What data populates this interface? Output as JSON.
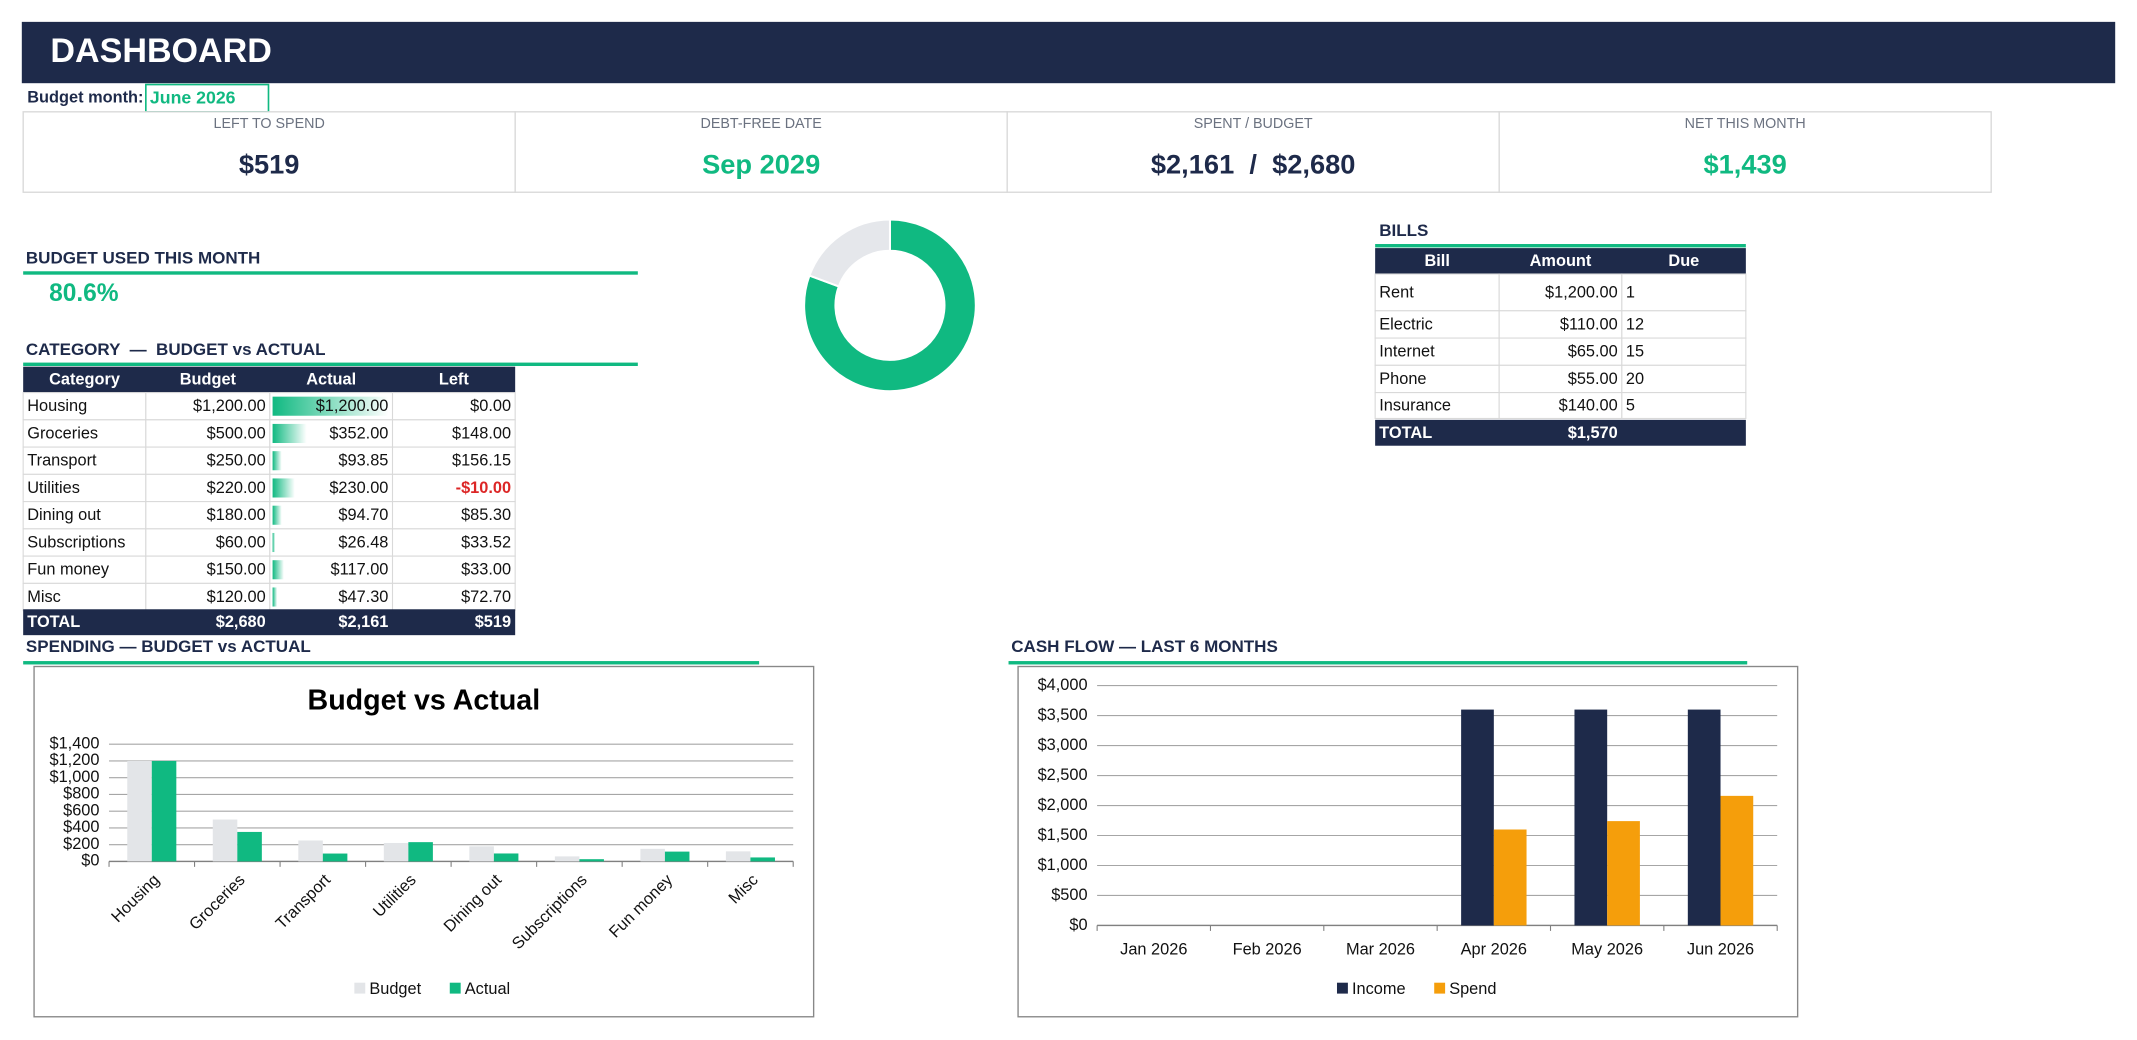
{
  "header": {
    "title": "DASHBOARD",
    "budget_month_label": "Budget month:",
    "budget_month": "June 2026"
  },
  "kpis": [
    {
      "label": "LEFT TO SPEND",
      "value": "$519",
      "color": "#1e2a4a"
    },
    {
      "label": "DEBT-FREE DATE",
      "value": "Sep 2029",
      "color": "#10b981"
    },
    {
      "label": "SPENT / BUDGET",
      "value": "$2,161  /  $2,680",
      "color": "#1e2a4a"
    },
    {
      "label": "NET THIS MONTH",
      "value": "$1,439",
      "color": "#10b981"
    }
  ],
  "budget_used": {
    "title": "BUDGET USED THIS MONTH",
    "value": "80.6%"
  },
  "category_table": {
    "title": "CATEGORY  —  BUDGET vs ACTUAL",
    "columns": [
      "Category",
      "Budget",
      "Actual",
      "Left"
    ],
    "rows": [
      [
        "Housing",
        "$1,200.00",
        "$1,200.00",
        "$0.00"
      ],
      [
        "Groceries",
        "$500.00",
        "$352.00",
        "$148.00"
      ],
      [
        "Transport",
        "$250.00",
        "$93.85",
        "$156.15"
      ],
      [
        "Utilities",
        "$220.00",
        "$230.00",
        "-$10.00"
      ],
      [
        "Dining out",
        "$180.00",
        "$94.70",
        "$85.30"
      ],
      [
        "Subscriptions",
        "$60.00",
        "$26.48",
        "$33.52"
      ],
      [
        "Fun money",
        "$150.00",
        "$117.00",
        "$33.00"
      ],
      [
        "Misc",
        "$120.00",
        "$47.30",
        "$72.70"
      ]
    ],
    "total": [
      "TOTAL",
      "$2,680",
      "$2,161",
      "$519"
    ]
  },
  "bills": {
    "title": "BILLS",
    "columns": [
      "Bill",
      "Amount",
      "Due"
    ],
    "rows": [
      [
        "Rent",
        "$1,200.00",
        "1"
      ],
      [
        "Electric",
        "$110.00",
        "12"
      ],
      [
        "Internet",
        "$65.00",
        "15"
      ],
      [
        "Phone",
        "$55.00",
        "20"
      ],
      [
        "Insurance",
        "$140.00",
        "5"
      ]
    ],
    "total": [
      "TOTAL",
      "$1,570"
    ]
  },
  "chart_data": [
    {
      "type": "donut",
      "values": [
        2161,
        519
      ],
      "colors": [
        "#10b981",
        "#e5e7eb"
      ]
    },
    {
      "type": "bar",
      "section_title": "SPENDING — BUDGET vs ACTUAL",
      "title": "Budget vs Actual",
      "categories": [
        "Housing",
        "Groceries",
        "Transport",
        "Utilities",
        "Dining out",
        "Subscriptions",
        "Fun money",
        "Misc"
      ],
      "series": [
        {
          "name": "Budget",
          "color": "#e3e5e8",
          "values": [
            1200,
            500,
            250,
            220,
            180,
            60,
            150,
            120
          ]
        },
        {
          "name": "Actual",
          "color": "#10b981",
          "values": [
            1200,
            352,
            93.85,
            230,
            94.7,
            26.48,
            117,
            47.3
          ]
        }
      ],
      "ylim": [
        0,
        1400
      ],
      "yticks": [
        {
          "value": 0,
          "label": "$0"
        },
        {
          "value": 200,
          "label": "$200"
        },
        {
          "value": 400,
          "label": "$400"
        },
        {
          "value": 600,
          "label": "$600"
        },
        {
          "value": 800,
          "label": "$800"
        },
        {
          "value": 1000,
          "label": "$1,000"
        },
        {
          "value": 1200,
          "label": "$1,200"
        },
        {
          "value": 1400,
          "label": "$1,400"
        }
      ],
      "grid": true,
      "legend": "bottom"
    },
    {
      "type": "bar",
      "section_title": "CASH FLOW — LAST 6 MONTHS",
      "categories": [
        "Jan 2026",
        "Feb 2026",
        "Mar 2026",
        "Apr 2026",
        "May 2026",
        "Jun 2026"
      ],
      "series": [
        {
          "name": "Income",
          "color": "#1e2a4a",
          "values": [
            0,
            0,
            0,
            3600,
            3600,
            3600
          ]
        },
        {
          "name": "Spend",
          "color": "#f59e0b",
          "values": [
            0,
            0,
            0,
            1600,
            1740,
            2161
          ]
        }
      ],
      "ylim": [
        0,
        4000
      ],
      "yticks": [
        {
          "value": 0,
          "label": "$0"
        },
        {
          "value": 500,
          "label": "$500"
        },
        {
          "value": 1000,
          "label": "$1,000"
        },
        {
          "value": 1500,
          "label": "$1,500"
        },
        {
          "value": 2000,
          "label": "$2,000"
        },
        {
          "value": 2500,
          "label": "$2,500"
        },
        {
          "value": 3000,
          "label": "$3,000"
        },
        {
          "value": 3500,
          "label": "$3,500"
        },
        {
          "value": 4000,
          "label": "$4,000"
        }
      ],
      "grid": true,
      "legend": "bottom"
    }
  ]
}
